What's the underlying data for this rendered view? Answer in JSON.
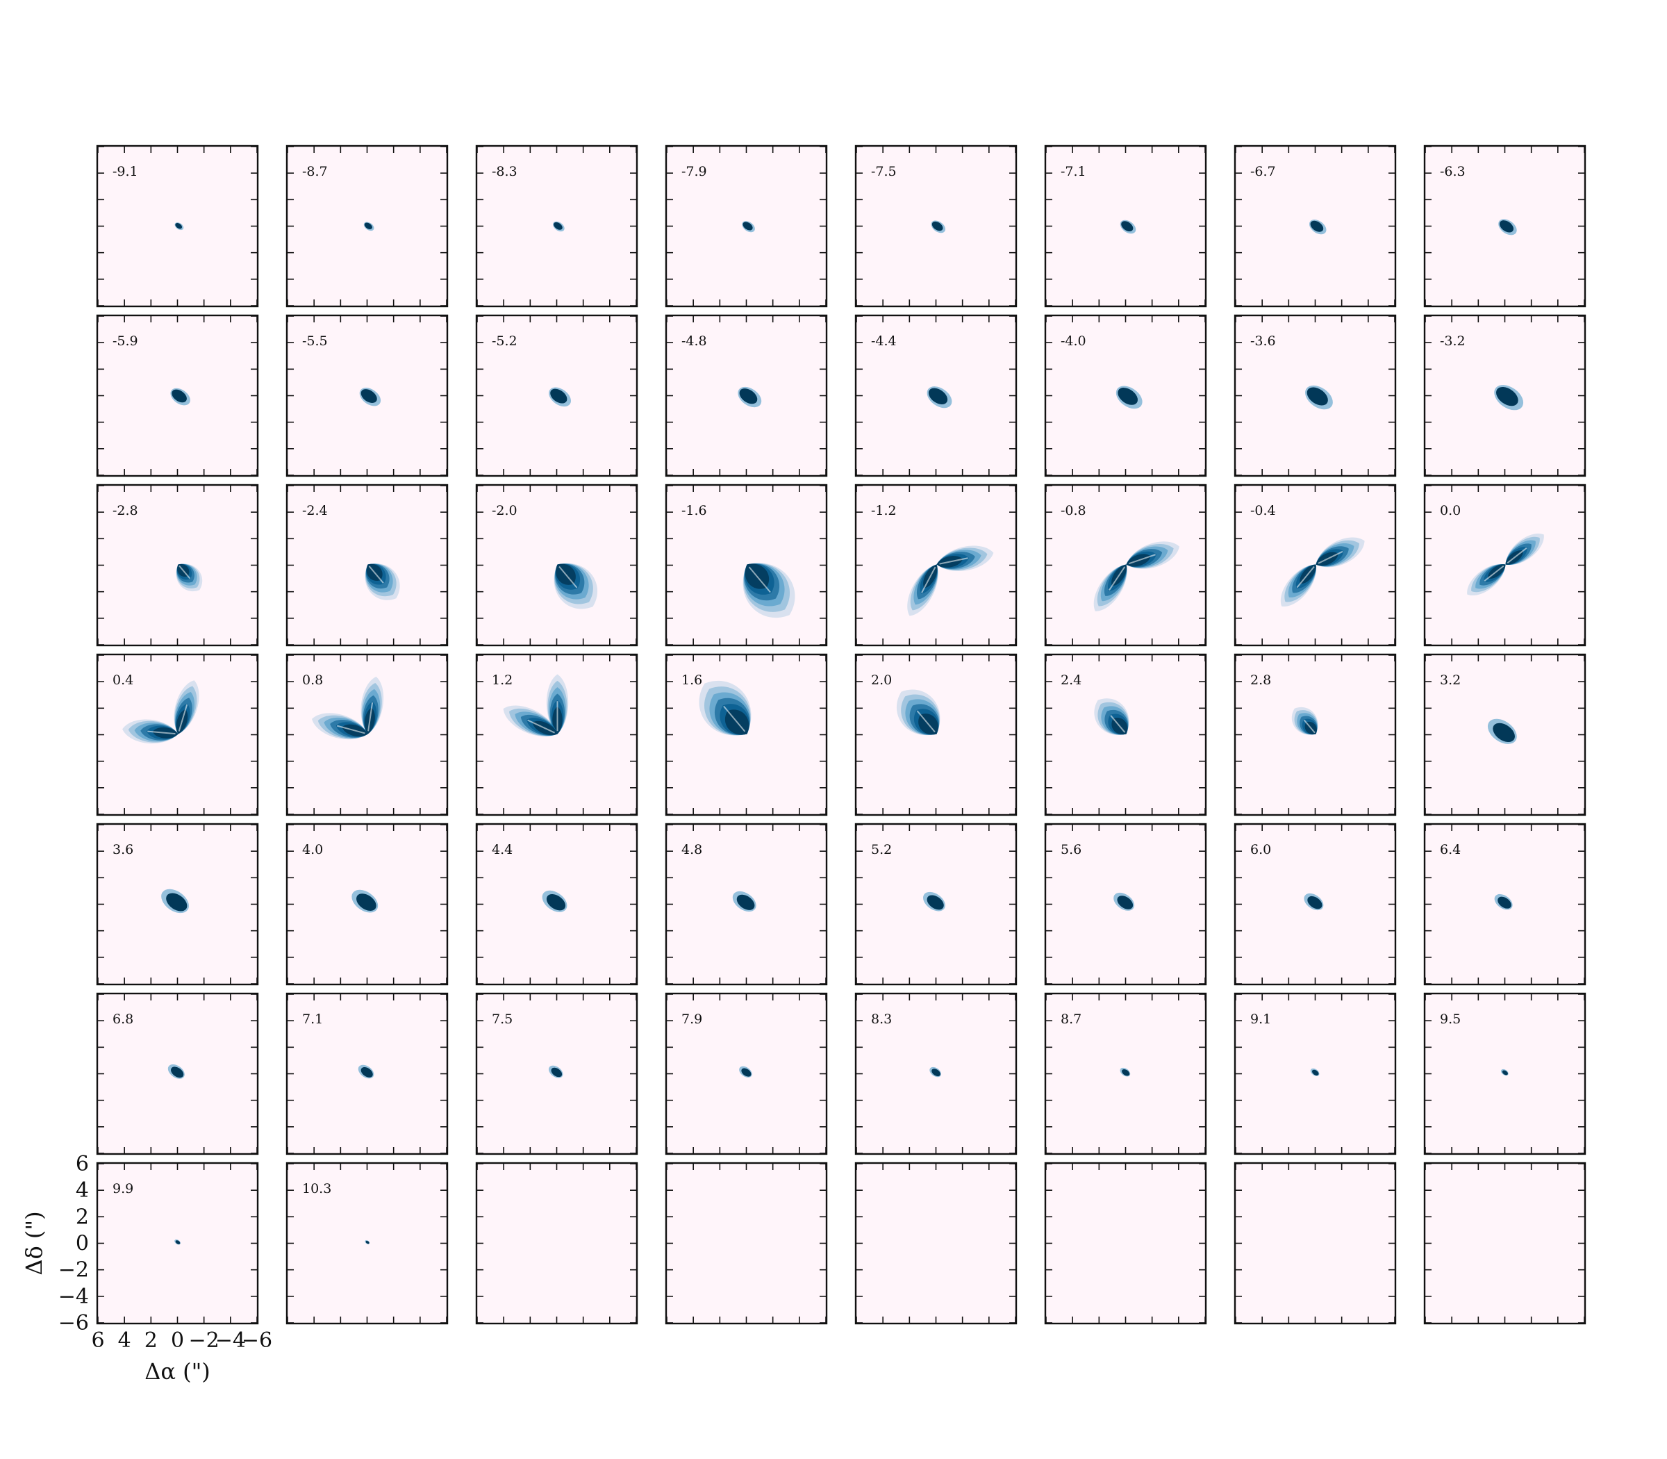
{
  "chart_data": {
    "type": "heatmap",
    "title": "",
    "layout": {
      "rows": 7,
      "cols": 8
    },
    "xlabel": "Δα (\")",
    "ylabel": "Δδ (\")",
    "xlim": [
      6,
      -6
    ],
    "ylim": [
      -6,
      6
    ],
    "xticks": [
      "6",
      "4",
      "2",
      "0",
      "−2",
      "−4",
      "−6"
    ],
    "yticks": [
      "6",
      "4",
      "2",
      "0",
      "−2",
      "−4",
      "−6"
    ],
    "colormap": {
      "low": "#fff5fa",
      "mid": "#2b8cbe",
      "high": "#023858"
    },
    "channels": [
      "-9.1",
      "-8.7",
      "-8.3",
      "-7.9",
      "-7.5",
      "-7.1",
      "-6.7",
      "-6.3",
      "-5.9",
      "-5.5",
      "-5.2",
      "-4.8",
      "-4.4",
      "-4.0",
      "-3.6",
      "-3.2",
      "-2.8",
      "-2.4",
      "-2.0",
      "-1.6",
      "-1.2",
      "-0.8",
      "-0.4",
      "0.0",
      "0.4",
      "0.8",
      "1.2",
      "1.6",
      "2.0",
      "2.4",
      "2.8",
      "3.2",
      "3.6",
      "4.0",
      "4.4",
      "4.8",
      "5.2",
      "5.6",
      "6.0",
      "6.4",
      "6.8",
      "7.1",
      "7.5",
      "7.9",
      "8.3",
      "8.7",
      "9.1",
      "9.5",
      "9.9",
      "10.3"
    ],
    "empty_panels": 6
  }
}
